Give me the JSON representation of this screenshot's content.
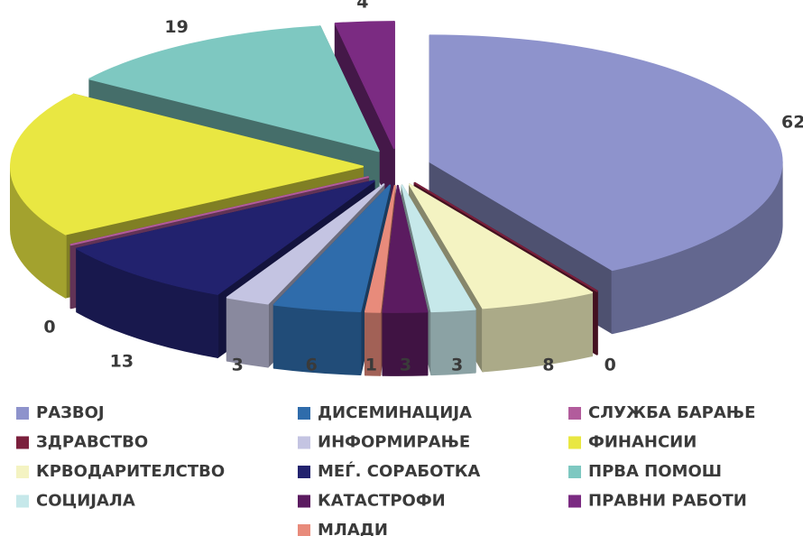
{
  "chart_data": {
    "type": "pie3d",
    "series": [
      {
        "name": "РАЗВОЈ",
        "color": "#8e93cc",
        "values": [
          62
        ]
      },
      {
        "name": "ЗДРАВСТВО",
        "color": "#7b1f3c",
        "values": [
          0
        ]
      },
      {
        "name": "КРВОДАРИТЕЛСТВО",
        "color": "#f4f3c2",
        "values": [
          8
        ]
      },
      {
        "name": "СОЦИЈАЛА",
        "color": "#c6e8ea",
        "values": [
          3
        ]
      },
      {
        "name": "ДИСЕМИНАЦИЈА",
        "color": "#2f6cab",
        "values": [
          6
        ]
      },
      {
        "name": "ИНФОРМИРАЊЕ",
        "color": "#c4c4e2",
        "values": [
          3
        ]
      },
      {
        "name": "МЕЃ. СОРАБОТКА",
        "color": "#22226e",
        "values": [
          13
        ]
      },
      {
        "name": "КАТАСТРОФИ",
        "color": "#5b1b60",
        "values": [
          3
        ]
      },
      {
        "name": "МЛАДИ",
        "color": "#e88b7b",
        "values": [
          1
        ]
      },
      {
        "name": "СЛУЖБА БАРАЊЕ",
        "color": "#b25c9c",
        "values": [
          0
        ]
      },
      {
        "name": "ФИНАНСИИ",
        "color": "#e9e742",
        "values": [
          28
        ]
      },
      {
        "name": "ПРВА ПОМОШ",
        "color": "#7ec8c1",
        "values": [
          19
        ]
      },
      {
        "name": "ПРАВНИ РАБОТИ",
        "color": "#7b2b82",
        "values": [
          4
        ]
      }
    ]
  }
}
